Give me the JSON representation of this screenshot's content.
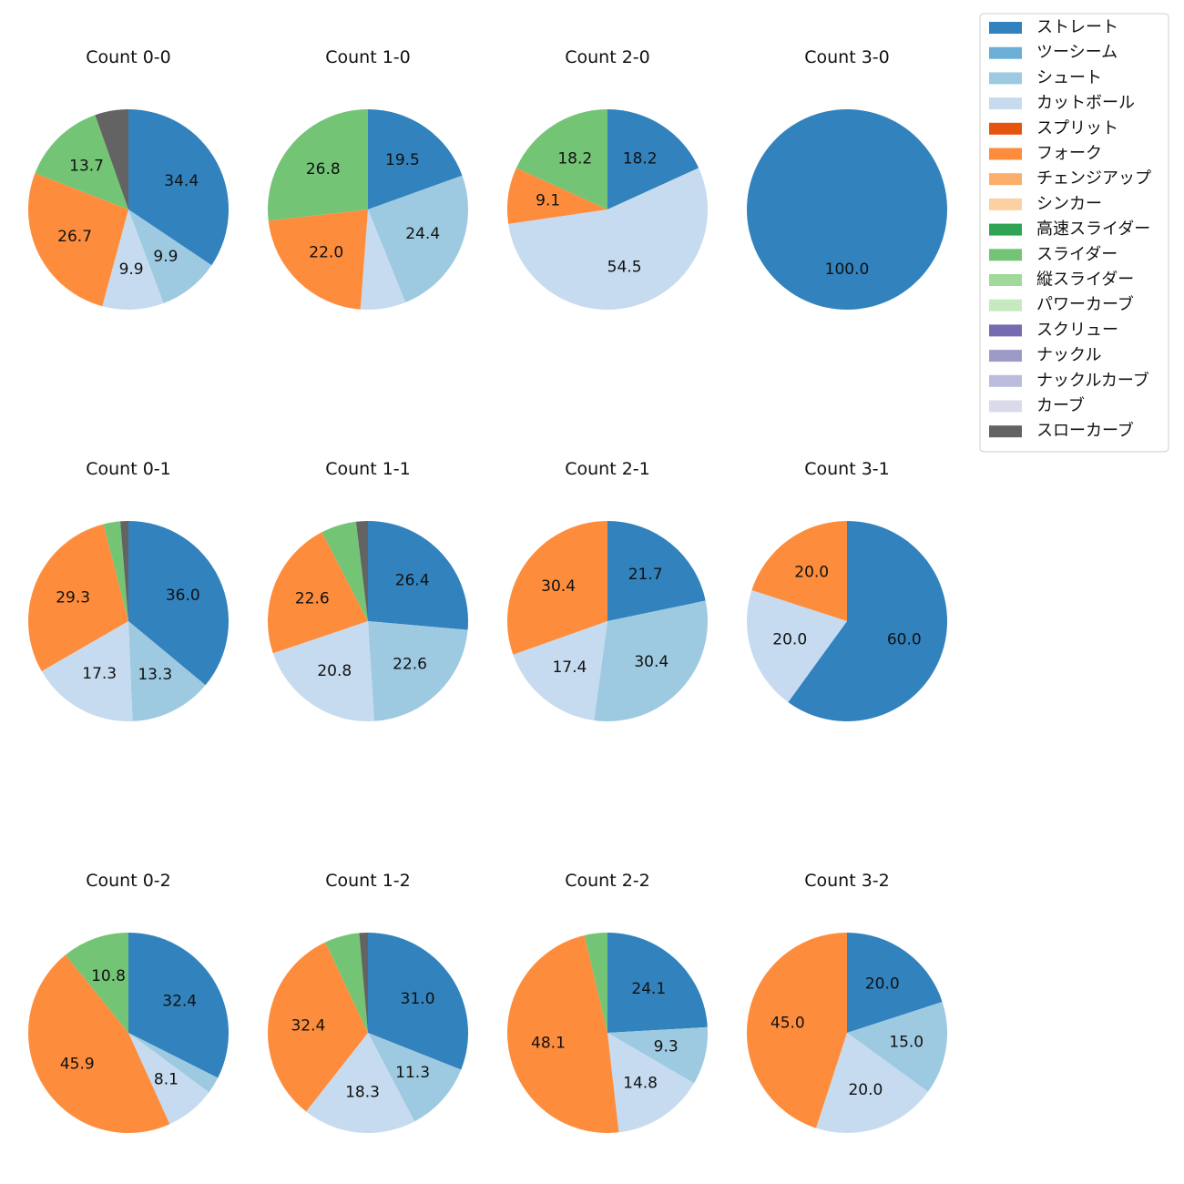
{
  "chart_data": {
    "type": "pie",
    "legend_position": "top-right",
    "pitch_types": [
      {
        "name": "ストレート",
        "color": "#3182bd"
      },
      {
        "name": "ツーシーム",
        "color": "#6baed6"
      },
      {
        "name": "シュート",
        "color": "#9ecae1"
      },
      {
        "name": "カットボール",
        "color": "#c6dbef"
      },
      {
        "name": "スプリット",
        "color": "#e6550d"
      },
      {
        "name": "フォーク",
        "color": "#fd8d3c"
      },
      {
        "name": "チェンジアップ",
        "color": "#fdae6b"
      },
      {
        "name": "シンカー",
        "color": "#fdd0a2"
      },
      {
        "name": "高速スライダー",
        "color": "#31a354"
      },
      {
        "name": "スライダー",
        "color": "#74c476"
      },
      {
        "name": "縦スライダー",
        "color": "#a1d99b"
      },
      {
        "name": "パワーカーブ",
        "color": "#c7e9c0"
      },
      {
        "name": "スクリュー",
        "color": "#756bb1"
      },
      {
        "name": "ナックル",
        "color": "#9e9ac8"
      },
      {
        "name": "ナックルカーブ",
        "color": "#bcbddc"
      },
      {
        "name": "カーブ",
        "color": "#dadaeb"
      },
      {
        "name": "スローカーブ",
        "color": "#636363"
      }
    ],
    "pies": [
      {
        "title": "Count 0-0",
        "slices": [
          {
            "type": "ストレート",
            "value": 34.4,
            "label": "34.4"
          },
          {
            "type": "シュート",
            "value": 9.9,
            "label": "9.9"
          },
          {
            "type": "カットボール",
            "value": 9.9,
            "label": "9.9"
          },
          {
            "type": "フォーク",
            "value": 26.7,
            "label": "26.7"
          },
          {
            "type": "スライダー",
            "value": 13.7,
            "label": "13.7"
          },
          {
            "type": "スローカーブ",
            "value": 5.4,
            "label": ""
          }
        ]
      },
      {
        "title": "Count 1-0",
        "slices": [
          {
            "type": "ストレート",
            "value": 19.5,
            "label": "19.5"
          },
          {
            "type": "シュート",
            "value": 24.4,
            "label": "24.4"
          },
          {
            "type": "カットボール",
            "value": 7.3,
            "label": ""
          },
          {
            "type": "フォーク",
            "value": 22.0,
            "label": "22.0"
          },
          {
            "type": "スライダー",
            "value": 26.8,
            "label": "26.8"
          }
        ]
      },
      {
        "title": "Count 2-0",
        "slices": [
          {
            "type": "ストレート",
            "value": 18.2,
            "label": "18.2"
          },
          {
            "type": "カットボール",
            "value": 54.5,
            "label": "54.5"
          },
          {
            "type": "フォーク",
            "value": 9.1,
            "label": "9.1"
          },
          {
            "type": "スライダー",
            "value": 18.2,
            "label": "18.2"
          }
        ]
      },
      {
        "title": "Count 3-0",
        "slices": [
          {
            "type": "ストレート",
            "value": 100.0,
            "label": "100.0"
          }
        ]
      },
      {
        "title": "Count 0-1",
        "slices": [
          {
            "type": "ストレート",
            "value": 36.0,
            "label": "36.0"
          },
          {
            "type": "シュート",
            "value": 13.3,
            "label": "13.3"
          },
          {
            "type": "カットボール",
            "value": 17.3,
            "label": "17.3"
          },
          {
            "type": "フォーク",
            "value": 29.3,
            "label": "29.3"
          },
          {
            "type": "スライダー",
            "value": 2.7,
            "label": ""
          },
          {
            "type": "スローカーブ",
            "value": 1.3,
            "label": ""
          }
        ]
      },
      {
        "title": "Count 1-1",
        "slices": [
          {
            "type": "ストレート",
            "value": 26.4,
            "label": "26.4"
          },
          {
            "type": "シュート",
            "value": 22.6,
            "label": "22.6"
          },
          {
            "type": "カットボール",
            "value": 20.8,
            "label": "20.8"
          },
          {
            "type": "フォーク",
            "value": 22.6,
            "label": "22.6"
          },
          {
            "type": "スライダー",
            "value": 5.7,
            "label": ""
          },
          {
            "type": "スローカーブ",
            "value": 1.9,
            "label": ""
          }
        ]
      },
      {
        "title": "Count 2-1",
        "slices": [
          {
            "type": "ストレート",
            "value": 21.7,
            "label": "21.7"
          },
          {
            "type": "シュート",
            "value": 30.4,
            "label": "30.4"
          },
          {
            "type": "カットボール",
            "value": 17.4,
            "label": "17.4"
          },
          {
            "type": "フォーク",
            "value": 30.4,
            "label": "30.4"
          }
        ]
      },
      {
        "title": "Count 3-1",
        "slices": [
          {
            "type": "ストレート",
            "value": 60.0,
            "label": "60.0"
          },
          {
            "type": "カットボール",
            "value": 20.0,
            "label": "20.0"
          },
          {
            "type": "フォーク",
            "value": 20.0,
            "label": "20.0"
          }
        ]
      },
      {
        "title": "Count 0-2",
        "slices": [
          {
            "type": "ストレート",
            "value": 32.4,
            "label": "32.4"
          },
          {
            "type": "シュート",
            "value": 2.7,
            "label": ""
          },
          {
            "type": "カットボール",
            "value": 8.1,
            "label": "8.1"
          },
          {
            "type": "フォーク",
            "value": 45.9,
            "label": "45.9"
          },
          {
            "type": "スライダー",
            "value": 10.8,
            "label": "10.8"
          }
        ]
      },
      {
        "title": "Count 1-2",
        "slices": [
          {
            "type": "ストレート",
            "value": 31.0,
            "label": "31.0"
          },
          {
            "type": "シュート",
            "value": 11.3,
            "label": "11.3"
          },
          {
            "type": "カットボール",
            "value": 18.3,
            "label": "18.3"
          },
          {
            "type": "フォーク",
            "value": 32.4,
            "label": "32.4"
          },
          {
            "type": "スライダー",
            "value": 5.6,
            "label": ""
          },
          {
            "type": "スローカーブ",
            "value": 1.4,
            "label": ""
          }
        ]
      },
      {
        "title": "Count 2-2",
        "slices": [
          {
            "type": "ストレート",
            "value": 24.1,
            "label": "24.1"
          },
          {
            "type": "シュート",
            "value": 9.3,
            "label": "9.3"
          },
          {
            "type": "カットボール",
            "value": 14.8,
            "label": "14.8"
          },
          {
            "type": "フォーク",
            "value": 48.1,
            "label": "48.1"
          },
          {
            "type": "スライダー",
            "value": 3.7,
            "label": ""
          }
        ]
      },
      {
        "title": "Count 3-2",
        "slices": [
          {
            "type": "ストレート",
            "value": 20.0,
            "label": "20.0"
          },
          {
            "type": "シュート",
            "value": 15.0,
            "label": "15.0"
          },
          {
            "type": "カットボール",
            "value": 20.0,
            "label": "20.0"
          },
          {
            "type": "フォーク",
            "value": 45.0,
            "label": "45.0"
          }
        ]
      }
    ]
  }
}
